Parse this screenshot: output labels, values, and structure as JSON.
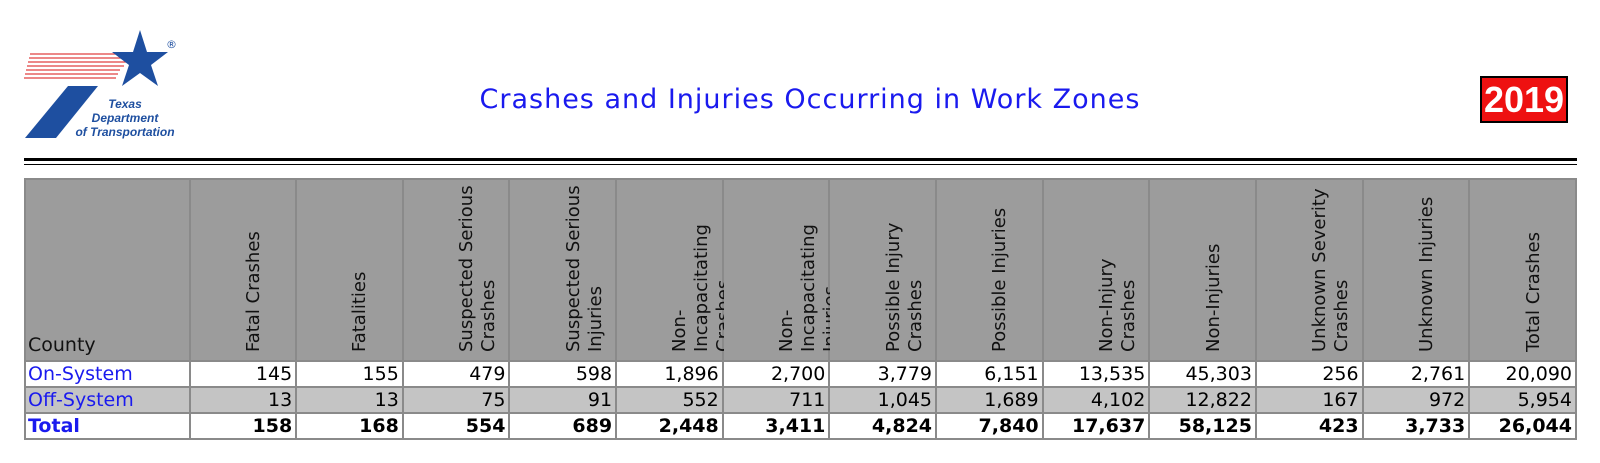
{
  "header": {
    "logo": {
      "icon": "txdot-star-logo-icon",
      "lines": [
        "Texas",
        "Department",
        "of Transportation"
      ],
      "registered": "®"
    },
    "title": "Crashes and Injuries Occurring in Work Zones",
    "year": "2019"
  },
  "colors": {
    "title": "#1a1aee",
    "year_badge": "#ee1111",
    "header_bg": "#9c9c9c",
    "alt_row_bg": "#c4c4c4",
    "logo_blue": "#1e4fa0",
    "logo_red_lines": "#e04040"
  },
  "table": {
    "columns": [
      "County",
      "Fatal Crashes",
      "Fatalities",
      "Suspected Serious Crashes",
      "Suspected Serious Injuries",
      "Non-Incapacitating Crashes",
      "Non-Incapacitating Injuries",
      "Possible Injury Crashes",
      "Possible Injuries",
      "Non-Injury Crashes",
      "Non-Injuries",
      "Unknown Severity Crashes",
      "Unknown  Injuries",
      "Total Crashes"
    ],
    "rows": [
      {
        "label": "On-System",
        "values": [
          "145",
          "155",
          "479",
          "598",
          "1,896",
          "2,700",
          "3,779",
          "6,151",
          "13,535",
          "45,303",
          "256",
          "2,761",
          "20,090"
        ]
      },
      {
        "label": "Off-System",
        "values": [
          "13",
          "13",
          "75",
          "91",
          "552",
          "711",
          "1,045",
          "1,689",
          "4,102",
          "12,822",
          "167",
          "972",
          "5,954"
        ]
      },
      {
        "label": "Total",
        "values": [
          "158",
          "168",
          "554",
          "689",
          "2,448",
          "3,411",
          "4,824",
          "7,840",
          "17,637",
          "58,125",
          "423",
          "3,733",
          "26,044"
        ]
      }
    ]
  }
}
